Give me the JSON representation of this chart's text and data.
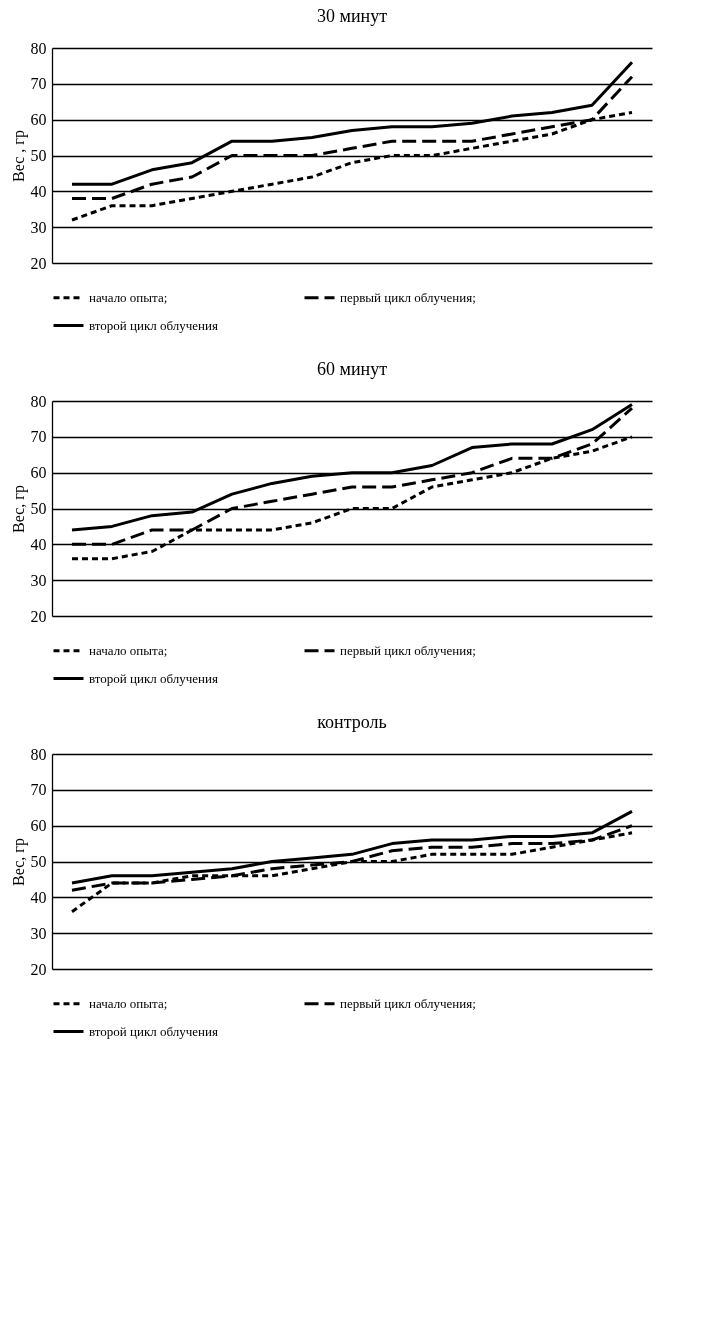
{
  "chart_data": [
    {
      "type": "line",
      "title": "30 минут",
      "ylabel": "Вес , гр",
      "categories": [
        null,
        null,
        null,
        null,
        null,
        null,
        null,
        null,
        null,
        null,
        null,
        null,
        null,
        null,
        null
      ],
      "ylim": [
        20,
        80
      ],
      "yticks": [
        20,
        30,
        40,
        50,
        60,
        70,
        80
      ],
      "grid": "y",
      "legend": "bottom",
      "tick_labels": "y",
      "marker": "none",
      "series": [
        {
          "name": "начало опыта;",
          "color": "#000000",
          "line_style": "dotted",
          "values": [
            32,
            36,
            36,
            38,
            40,
            42,
            44,
            48,
            50,
            50,
            52,
            54,
            56,
            60,
            62
          ]
        },
        {
          "name": "первый цикл облучения;",
          "color": "#000000",
          "line_style": "dashed",
          "values": [
            38,
            38,
            42,
            44,
            50,
            50,
            50,
            52,
            54,
            54,
            54,
            56,
            58,
            60,
            72
          ]
        },
        {
          "name": "второй цикл облучения",
          "color": "#000000",
          "line_style": "solid",
          "values": [
            42,
            42,
            46,
            48,
            54,
            54,
            55,
            57,
            58,
            58,
            59,
            61,
            62,
            64,
            76
          ]
        }
      ]
    },
    {
      "type": "line",
      "title": "60 минут",
      "ylabel": "Вес, гр",
      "categories": [
        null,
        null,
        null,
        null,
        null,
        null,
        null,
        null,
        null,
        null,
        null,
        null,
        null,
        null,
        null
      ],
      "ylim": [
        20,
        80
      ],
      "yticks": [
        20,
        30,
        40,
        50,
        60,
        70,
        80
      ],
      "grid": "y",
      "legend": "bottom",
      "tick_labels": "y",
      "marker": "none",
      "series": [
        {
          "name": "начало опыта;",
          "color": "#000000",
          "line_style": "dotted",
          "values": [
            36,
            36,
            38,
            44,
            44,
            44,
            46,
            50,
            50,
            56,
            58,
            60,
            64,
            66,
            70
          ]
        },
        {
          "name": "первый цикл облучения;",
          "color": "#000000",
          "line_style": "dashed",
          "values": [
            40,
            40,
            44,
            44,
            50,
            52,
            54,
            56,
            56,
            58,
            60,
            64,
            64,
            68,
            78
          ]
        },
        {
          "name": "второй цикл облучения",
          "color": "#000000",
          "line_style": "solid",
          "values": [
            44,
            45,
            48,
            49,
            54,
            57,
            59,
            60,
            60,
            62,
            67,
            68,
            68,
            72,
            79
          ]
        }
      ]
    },
    {
      "type": "line",
      "title": "контроль",
      "ylabel": "Вес, гр",
      "categories": [
        null,
        null,
        null,
        null,
        null,
        null,
        null,
        null,
        null,
        null,
        null,
        null,
        null,
        null,
        null
      ],
      "ylim": [
        20,
        80
      ],
      "yticks": [
        20,
        30,
        40,
        50,
        60,
        70,
        80
      ],
      "grid": "y",
      "legend": "bottom",
      "tick_labels": "y",
      "marker": "none",
      "series": [
        {
          "name": "начало опыта;",
          "color": "#000000",
          "line_style": "dotted",
          "values": [
            36,
            44,
            44,
            46,
            46,
            46,
            48,
            50,
            50,
            52,
            52,
            52,
            54,
            56,
            58
          ]
        },
        {
          "name": "первый цикл облучения;",
          "color": "#000000",
          "line_style": "dashed",
          "values": [
            42,
            44,
            44,
            45,
            46,
            48,
            49,
            50,
            53,
            54,
            54,
            55,
            55,
            56,
            60
          ]
        },
        {
          "name": "второй цикл облучения",
          "color": "#000000",
          "line_style": "solid",
          "values": [
            44,
            46,
            46,
            47,
            48,
            50,
            51,
            52,
            55,
            56,
            56,
            57,
            57,
            58,
            64
          ]
        }
      ]
    }
  ]
}
